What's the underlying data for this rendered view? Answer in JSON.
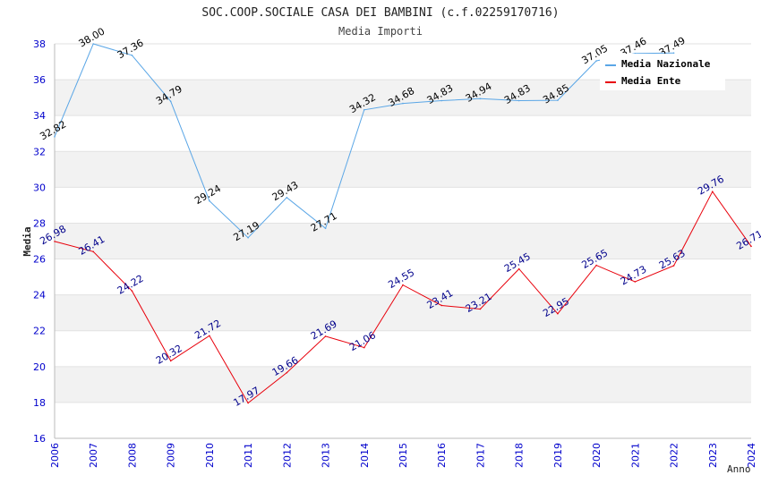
{
  "chart_data": {
    "type": "line",
    "title": "SOC.COOP.SOCIALE CASA DEI BAMBINI (c.f.02259170716)",
    "subtitle": "Media Importi",
    "xlabel": "Anno",
    "ylabel": "Media",
    "ylim": [
      16,
      38
    ],
    "yticks": [
      16,
      18,
      20,
      22,
      24,
      26,
      28,
      30,
      32,
      34,
      36,
      38
    ],
    "categories": [
      "2006",
      "2007",
      "2008",
      "2009",
      "2010",
      "2011",
      "2012",
      "2013",
      "2014",
      "2015",
      "2016",
      "2017",
      "2018",
      "2019",
      "2020",
      "2021",
      "2022",
      "2023",
      "2024"
    ],
    "series": [
      {
        "name": "Media Nazionale",
        "color": "#5aa6e6",
        "label_color": "#000000",
        "values": [
          32.82,
          38.0,
          37.36,
          34.79,
          29.24,
          27.19,
          29.43,
          27.71,
          34.32,
          34.68,
          34.83,
          34.94,
          34.83,
          34.85,
          37.05,
          37.46,
          37.49,
          null,
          null
        ],
        "labels": [
          "32.82",
          "38.00",
          "37.36",
          "34.79",
          "29.24",
          "27.19",
          "29.43",
          "27.71",
          "34.32",
          "34.68",
          "34.83",
          "34.94",
          "34.83",
          "34.85",
          "37.05",
          "37.46",
          "37.49",
          "",
          ""
        ]
      },
      {
        "name": "Media Ente",
        "color": "#e8000b",
        "label_color": "#00008b",
        "values": [
          26.98,
          26.41,
          24.22,
          20.32,
          21.72,
          17.97,
          19.66,
          21.69,
          21.06,
          24.55,
          23.41,
          23.21,
          25.45,
          22.95,
          25.65,
          24.73,
          25.63,
          29.76,
          26.71
        ],
        "labels": [
          "26.98",
          "26.41",
          "24.22",
          "20.32",
          "21.72",
          "17.97",
          "19.66",
          "21.69",
          "21.06",
          "24.55",
          "23.41",
          "23.21",
          "25.45",
          "22.95",
          "25.65",
          "24.73",
          "25.63",
          "29.76",
          "26.71"
        ]
      }
    ],
    "legend": "top-right",
    "grid": true
  },
  "colors": {
    "band": "#f2f2f2",
    "axis": "#bbbbbb",
    "tick_text": "#0000cc",
    "title_text": "#222222"
  }
}
